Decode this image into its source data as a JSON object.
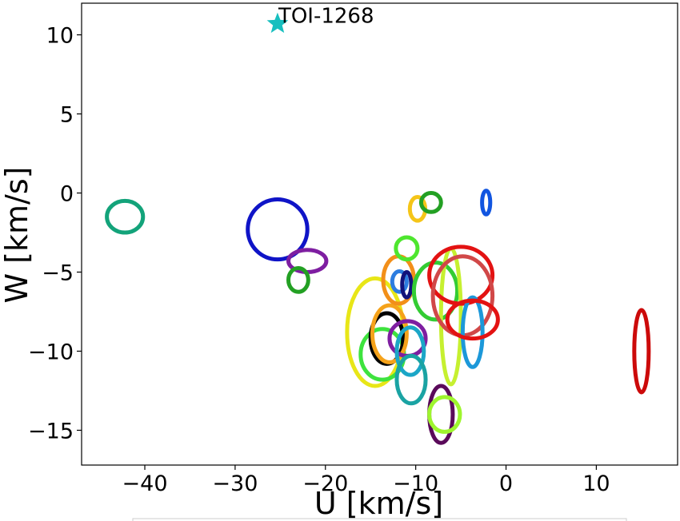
{
  "chart_data": {
    "type": "scatter",
    "title": "",
    "xlabel": "U [km/s]",
    "ylabel": "W [km/s]",
    "xlim": [
      -47,
      19
    ],
    "ylim": [
      -17.2,
      12.0
    ],
    "x_ticks": [
      -40,
      -30,
      -20,
      -10,
      0,
      10
    ],
    "y_ticks": [
      10,
      5,
      0,
      -5,
      -10,
      -15
    ],
    "x_tick_labels": [
      "−40",
      "−30",
      "−20",
      "−10",
      "0",
      "10"
    ],
    "y_tick_labels": [
      "10",
      "5",
      "0",
      "−5",
      "−10",
      "−15"
    ],
    "grid": false,
    "legend": "none",
    "highlight": {
      "label": "TOI-1268",
      "u": -25.3,
      "w": 10.7,
      "marker": "star",
      "color": "#17bfbf"
    },
    "groups": [
      {
        "u": -42.2,
        "w": -1.5,
        "su": 2.0,
        "sw": 1.0,
        "color": "#13a37a"
      },
      {
        "u": -25.3,
        "w": -2.3,
        "su": 3.3,
        "sw": 1.9,
        "color": "#0f14c7"
      },
      {
        "u": -22.0,
        "w": -4.3,
        "su": 2.1,
        "sw": 0.7,
        "color": "#7e1ea1"
      },
      {
        "u": -23.0,
        "w": -5.5,
        "su": 1.1,
        "sw": 0.75,
        "color": "#23a023"
      },
      {
        "u": -14.5,
        "w": -8.8,
        "su": 3.1,
        "sw": 3.4,
        "color": "#e8e617"
      },
      {
        "u": -13.7,
        "w": -10.2,
        "su": 2.4,
        "sw": 1.6,
        "color": "#3ee33e"
      },
      {
        "u": -13.2,
        "w": -9.2,
        "su": 1.8,
        "sw": 1.6,
        "color": "#000000"
      },
      {
        "u": -12.9,
        "w": -8.9,
        "su": 1.9,
        "sw": 1.8,
        "color": "#f5a21a"
      },
      {
        "u": -11.9,
        "w": -5.5,
        "su": 1.7,
        "sw": 1.5,
        "color": "#f28f19"
      },
      {
        "u": -11.8,
        "w": -5.6,
        "su": 0.8,
        "sw": 0.65,
        "color": "#2d7de0"
      },
      {
        "u": -11.0,
        "w": -5.8,
        "su": 0.5,
        "sw": 0.8,
        "color": "#12127a"
      },
      {
        "u": -11.0,
        "w": -3.5,
        "su": 1.2,
        "sw": 0.7,
        "color": "#4ee62e"
      },
      {
        "u": -10.9,
        "w": -9.2,
        "su": 2.0,
        "sw": 1.1,
        "color": "#7e1ea1"
      },
      {
        "u": -10.6,
        "w": -10.0,
        "su": 1.5,
        "sw": 1.5,
        "color": "#1ba6c7"
      },
      {
        "u": -10.5,
        "w": -11.8,
        "su": 1.6,
        "sw": 1.5,
        "color": "#1aa3a3"
      },
      {
        "u": -9.8,
        "w": -1.0,
        "su": 0.85,
        "sw": 0.75,
        "color": "#f5c518"
      },
      {
        "u": -8.3,
        "w": -0.6,
        "su": 1.1,
        "sw": 0.6,
        "color": "#23a023"
      },
      {
        "u": -7.8,
        "w": -6.2,
        "su": 2.4,
        "sw": 1.8,
        "color": "#33cc33"
      },
      {
        "u": -7.2,
        "w": -14.0,
        "su": 1.3,
        "sw": 1.8,
        "color": "#5a0a5a"
      },
      {
        "u": -6.8,
        "w": -14.0,
        "su": 1.7,
        "sw": 1.1,
        "color": "#9ef52e"
      },
      {
        "u": -6.1,
        "w": -7.8,
        "su": 1.1,
        "sw": 4.3,
        "color": "#c6f030"
      },
      {
        "u": -5.0,
        "w": -5.2,
        "su": 3.5,
        "sw": 1.8,
        "color": "#e31212"
      },
      {
        "u": -4.8,
        "w": -6.5,
        "su": 3.3,
        "sw": 2.5,
        "color": "#d14848"
      },
      {
        "u": -3.7,
        "w": -8.8,
        "su": 1.1,
        "sw": 2.2,
        "color": "#1c98d9"
      },
      {
        "u": -3.7,
        "w": -8.0,
        "su": 2.8,
        "sw": 1.2,
        "color": "#e31212"
      },
      {
        "u": -2.2,
        "w": -0.6,
        "su": 0.45,
        "sw": 0.75,
        "color": "#1155e0"
      },
      {
        "u": 15.0,
        "w": -10.0,
        "su": 0.8,
        "sw": 2.6,
        "color": "#cc0a0a"
      }
    ]
  }
}
